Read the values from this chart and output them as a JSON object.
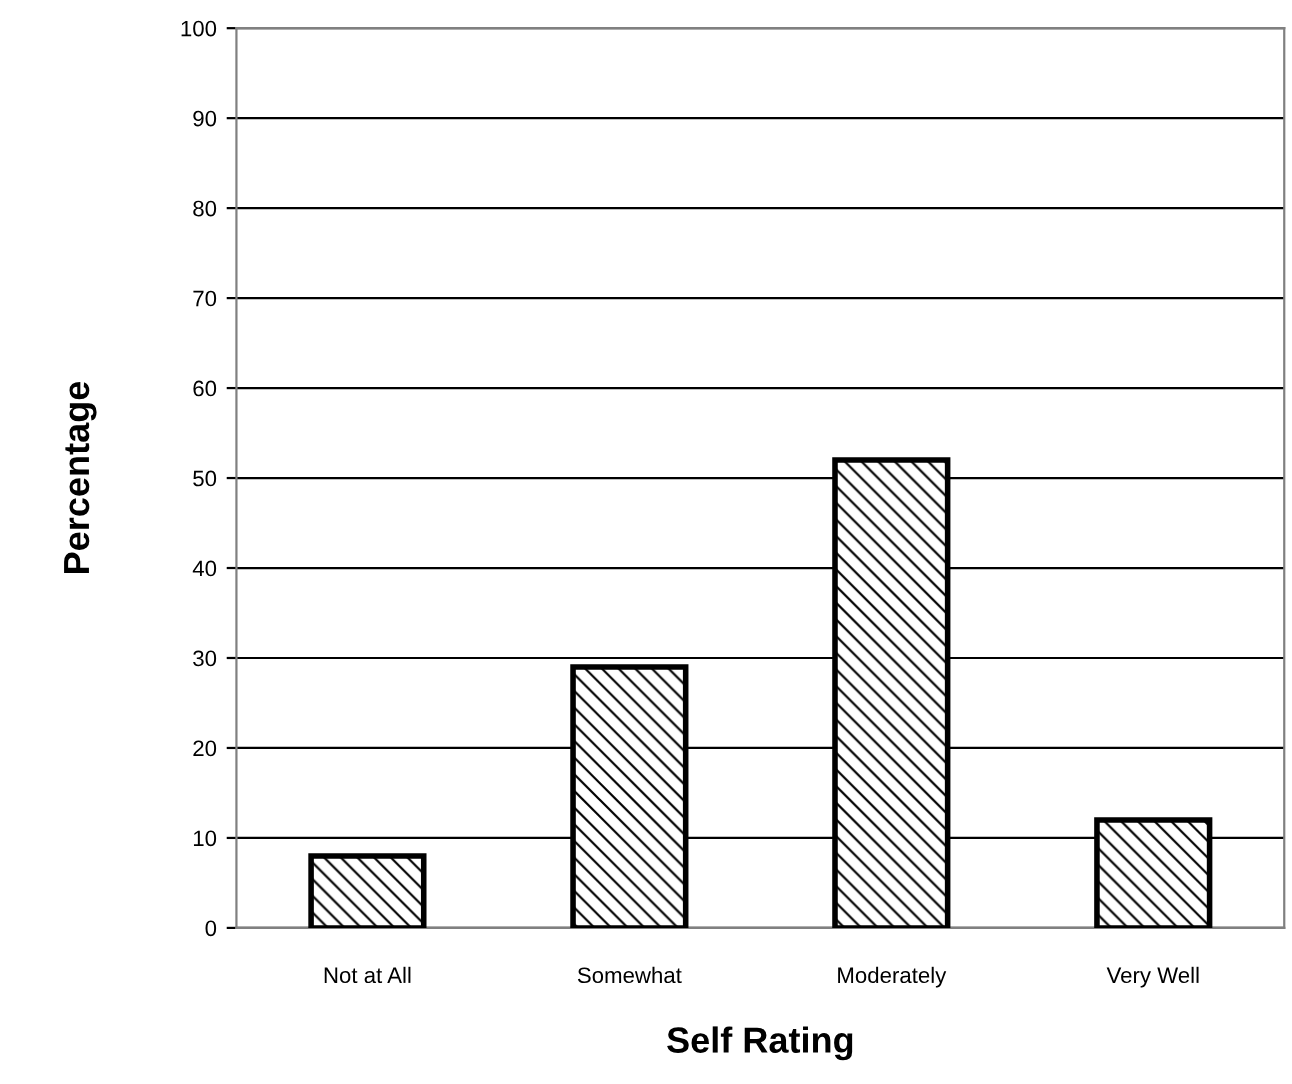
{
  "chart_data": {
    "type": "bar",
    "xlabel": "Self Rating",
    "ylabel": "Percentage",
    "categories": [
      "Not at All",
      "Somewhat",
      "Moderately",
      "Very Well"
    ],
    "values": [
      8,
      29,
      52,
      12
    ],
    "color": "#000000",
    "ylim": [
      0,
      100
    ],
    "yticks": [
      0,
      10,
      20,
      30,
      40,
      50,
      60,
      70,
      80,
      90,
      100
    ],
    "grid": "y"
  }
}
